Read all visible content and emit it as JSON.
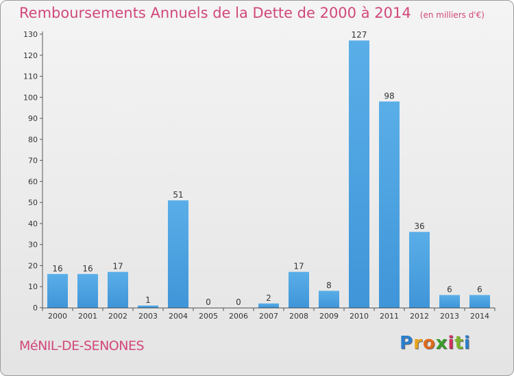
{
  "chart_data": {
    "type": "bar",
    "title": "Remboursements Annuels de la Dette de 2000 à 2014",
    "unit_note": "(en milliers d'€)",
    "categories": [
      "2000",
      "2001",
      "2002",
      "2003",
      "2004",
      "2005",
      "2006",
      "2007",
      "2008",
      "2009",
      "2010",
      "2011",
      "2012",
      "2013",
      "2014"
    ],
    "values": [
      16,
      16,
      17,
      1,
      51,
      0,
      0,
      2,
      17,
      8,
      127,
      98,
      36,
      6,
      6
    ],
    "xlabel": "",
    "ylabel": "",
    "ylim": [
      0,
      130
    ],
    "yticks": [
      0,
      10,
      20,
      30,
      40,
      50,
      60,
      70,
      80,
      90,
      100,
      110,
      120,
      130
    ],
    "grid": false,
    "legend": "none",
    "bar_color": "#3f95d8"
  },
  "commune": "MéNIL-DE-SENONES",
  "brand": {
    "name": "Proxiti",
    "letters": [
      "P",
      "r",
      "o",
      "x",
      "i",
      "t",
      "i"
    ]
  }
}
